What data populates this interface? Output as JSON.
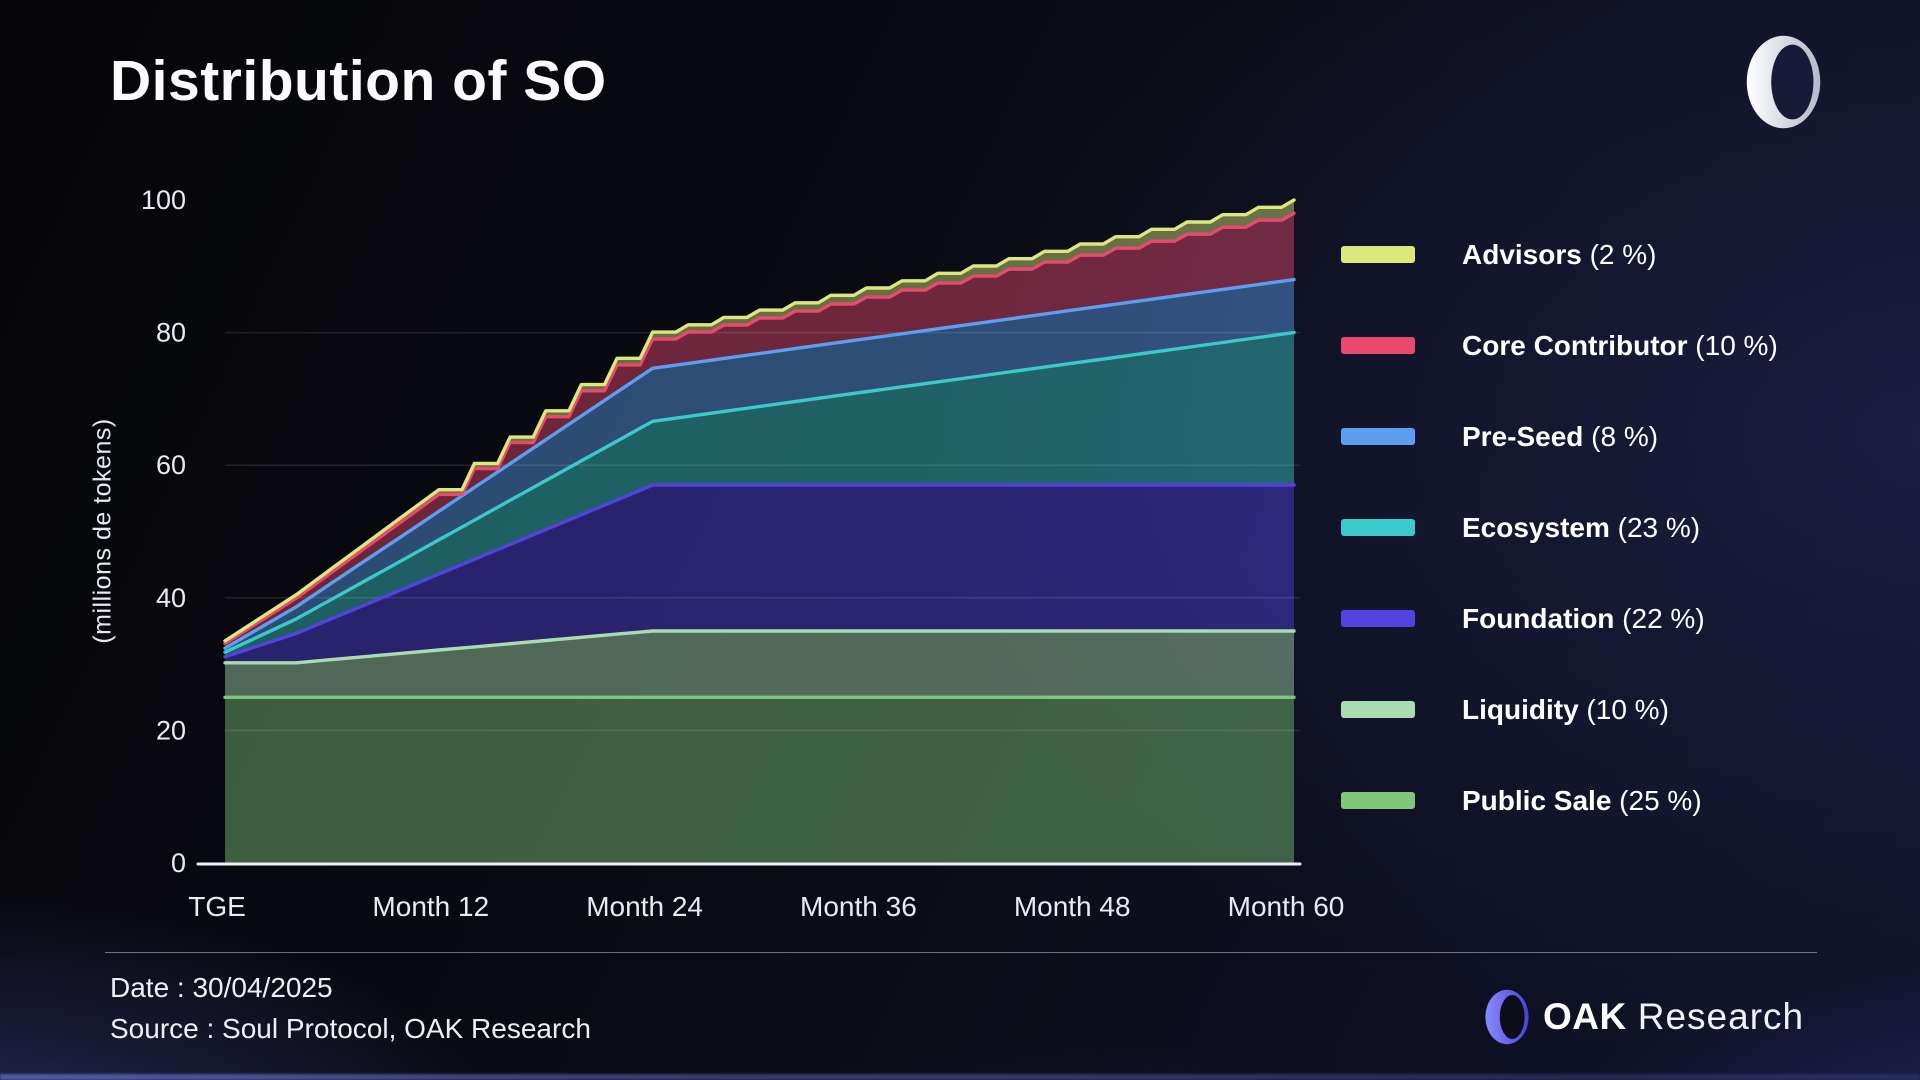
{
  "page": {
    "title": "Distribution of SO",
    "footer": {
      "date": "Date : 30/04/2025",
      "source": "Source : Soul Protocol, OAK Research"
    },
    "brand": {
      "name_bold": "OAK",
      "name_light": "Research"
    }
  },
  "chart_data": {
    "type": "area",
    "stacked": true,
    "title": "Distribution of SO",
    "ylabel": "(millions de tokens)",
    "xlabel": "",
    "ylim": [
      0,
      100
    ],
    "yticks": [
      0,
      20,
      40,
      60,
      80,
      100
    ],
    "grid": true,
    "legend_position": "right",
    "xtick_labels": [
      "TGE",
      "Month 12",
      "Month 24",
      "Month 36",
      "Month 48",
      "Month 60"
    ],
    "xtick_months": [
      0,
      12,
      24,
      36,
      48,
      60
    ],
    "x_months": [
      0,
      2,
      4,
      6,
      8,
      10,
      12,
      14,
      16,
      18,
      20,
      22,
      24,
      26,
      28,
      30,
      32,
      34,
      36,
      38,
      40,
      42,
      44,
      46,
      48,
      50,
      52,
      54,
      56,
      58,
      60
    ],
    "series": [
      {
        "name": "Public Sale",
        "pct": "25 %",
        "color": "#7fc87a",
        "wavy": false,
        "values": [
          25,
          25,
          25,
          25,
          25,
          25,
          25,
          25,
          25,
          25,
          25,
          25,
          25,
          25,
          25,
          25,
          25,
          25,
          25,
          25,
          25,
          25,
          25,
          25,
          25,
          25,
          25,
          25,
          25,
          25,
          25
        ]
      },
      {
        "name": "Liquidity",
        "pct": "10 %",
        "color": "#a9ddb1",
        "wavy": false,
        "values": [
          5.2,
          5.2,
          5.2,
          5.68,
          6.16,
          6.64,
          7.12,
          7.6,
          8.08,
          8.56,
          9.04,
          9.52,
          10,
          10,
          10,
          10,
          10,
          10,
          10,
          10,
          10,
          10,
          10,
          10,
          10,
          10,
          10,
          10,
          10,
          10,
          10
        ]
      },
      {
        "name": "Foundation",
        "pct": "22 %",
        "color": "#5143e0",
        "wavy": false,
        "values": [
          0.9,
          2.66,
          4.42,
          6.18,
          7.93,
          9.69,
          11.45,
          13.21,
          14.97,
          16.73,
          18.48,
          20.24,
          22,
          22,
          22,
          22,
          22,
          22,
          22,
          22,
          22,
          22,
          22,
          22,
          22,
          22,
          22,
          22,
          22,
          22,
          22
        ]
      },
      {
        "name": "Ecosystem",
        "pct": "23 %",
        "color": "#3bc9c9",
        "wavy": false,
        "values": [
          0.7,
          1.44,
          2.19,
          2.93,
          3.67,
          4.42,
          5.16,
          5.9,
          6.65,
          7.39,
          8.13,
          8.88,
          9.62,
          10.36,
          11.11,
          11.85,
          12.59,
          13.34,
          14.08,
          14.82,
          15.57,
          16.31,
          17.05,
          17.8,
          18.54,
          19.28,
          20.03,
          20.77,
          21.51,
          22.26,
          23
        ]
      },
      {
        "name": "Pre-Seed",
        "pct": "8 %",
        "color": "#5c9ff0",
        "wavy": false,
        "values": [
          0.6,
          1.22,
          1.83,
          2.45,
          3.07,
          3.68,
          4.3,
          4.92,
          5.53,
          6.15,
          6.77,
          7.38,
          8,
          8,
          8,
          8,
          8,
          8,
          8,
          8,
          8,
          8,
          8,
          8,
          8,
          8,
          8,
          8,
          8,
          8,
          8
        ]
      },
      {
        "name": "Core Contributor",
        "pct": "10 %",
        "color": "#e84a6e",
        "wavy": true,
        "values": [
          0.7,
          1.01,
          1.32,
          1.63,
          1.94,
          2.25,
          2.56,
          2.87,
          3.18,
          3.49,
          3.8,
          4.11,
          4.42,
          4.73,
          5.04,
          5.35,
          5.66,
          5.97,
          6.28,
          6.59,
          6.9,
          7.21,
          7.52,
          7.83,
          8.14,
          8.45,
          8.76,
          9.07,
          9.38,
          9.69,
          10
        ]
      },
      {
        "name": "Advisors",
        "pct": "2 %",
        "color": "#dce87c",
        "wavy": true,
        "values": [
          0.4,
          0.45,
          0.51,
          0.56,
          0.61,
          0.67,
          0.72,
          0.77,
          0.83,
          0.88,
          0.93,
          0.99,
          1.04,
          1.09,
          1.15,
          1.2,
          1.25,
          1.31,
          1.36,
          1.41,
          1.47,
          1.52,
          1.57,
          1.63,
          1.68,
          1.73,
          1.79,
          1.84,
          1.89,
          1.95,
          2
        ]
      }
    ],
    "legend_order_top_to_bottom": [
      "Advisors",
      "Core Contributor",
      "Pre-Seed",
      "Ecosystem",
      "Foundation",
      "Liquidity",
      "Public Sale"
    ]
  }
}
